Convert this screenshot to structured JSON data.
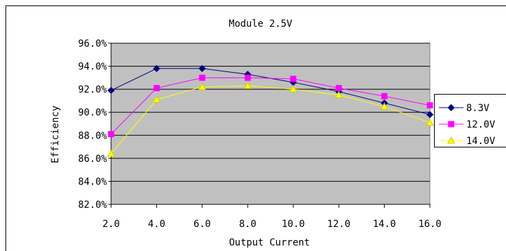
{
  "chart_data": {
    "type": "line",
    "title": "Module 2.5V",
    "xlabel": "Output Current",
    "ylabel": "Efficiency",
    "categories": [
      "2.0",
      "4.0",
      "6.0",
      "8.0",
      "10.0",
      "12.0",
      "14.0",
      "16.0"
    ],
    "x": [
      2,
      4,
      6,
      8,
      10,
      12,
      14,
      16
    ],
    "xlim": [
      2,
      16
    ],
    "ylim": [
      82.0,
      96.0
    ],
    "ytick_values": [
      82.0,
      84.0,
      86.0,
      88.0,
      90.0,
      92.0,
      94.0,
      96.0
    ],
    "ytick_labels": [
      "82.0%",
      "84.0%",
      "86.0%",
      "88.0%",
      "90.0%",
      "92.0%",
      "94.0%",
      "96.0%"
    ],
    "grid": "horizontal",
    "legend_position": "right",
    "plot_background": "#c0c0c0",
    "series": [
      {
        "name": "8.3V",
        "values": [
          91.9,
          93.8,
          93.8,
          93.3,
          92.6,
          91.8,
          90.8,
          89.8
        ],
        "color": "#000080",
        "marker": "diamond",
        "marker_fill": "#000080"
      },
      {
        "name": "12.0V",
        "values": [
          88.1,
          92.1,
          93.0,
          93.0,
          92.9,
          92.1,
          91.4,
          90.6
        ],
        "color": "#ff00ff",
        "marker": "square",
        "marker_fill": "#ff00ff"
      },
      {
        "name": "14.0V",
        "values": [
          86.4,
          91.1,
          92.2,
          92.3,
          92.0,
          91.5,
          90.5,
          89.1
        ],
        "color": "#ffff00",
        "marker": "triangle",
        "marker_fill": "#ffff00"
      }
    ]
  }
}
